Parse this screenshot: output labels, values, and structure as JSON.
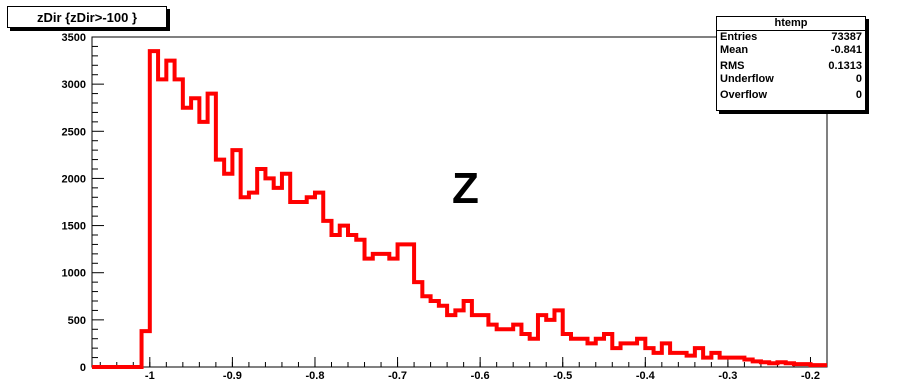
{
  "title": "zDir {zDir>-100 }",
  "annotation": "Z",
  "stats": {
    "name": "htemp",
    "rows": [
      {
        "label": "Entries",
        "value": "73387"
      },
      {
        "label": "Mean",
        "value": "-0.841"
      },
      {
        "label": "RMS",
        "value": "0.1313"
      },
      {
        "label": "Underflow",
        "value": "0"
      },
      {
        "label": "Overflow",
        "value": "0"
      }
    ]
  },
  "colors": {
    "histogram": "#ff0000",
    "frame": "#000000"
  },
  "chart_data": {
    "type": "histogram",
    "title": "zDir {zDir>-100 }",
    "xlabel": "",
    "ylabel": "",
    "xlim": [
      -1.07,
      -0.18
    ],
    "ylim": [
      0,
      3500
    ],
    "x_ticks": [
      -1,
      -0.9,
      -0.8,
      -0.7,
      -0.6,
      -0.5,
      -0.4,
      -0.3,
      -0.2
    ],
    "x_tick_labels": [
      "-1",
      "-0.9",
      "-0.8",
      "-0.7",
      "-0.6",
      "-0.5",
      "-0.4",
      "-0.3",
      "-0.2"
    ],
    "y_ticks": [
      0,
      500,
      1000,
      1500,
      2000,
      2500,
      3000,
      3500
    ],
    "y_tick_labels": [
      "0",
      "500",
      "1000",
      "1500",
      "2000",
      "2500",
      "3000",
      "3500"
    ],
    "bin_width": 0.01,
    "bin_start": -1.07,
    "values": [
      0,
      0,
      0,
      0,
      0,
      0,
      380,
      3350,
      3050,
      3250,
      3050,
      2750,
      2850,
      2600,
      2900,
      2200,
      2050,
      2300,
      1800,
      1850,
      2100,
      2000,
      1900,
      2050,
      1750,
      1750,
      1800,
      1850,
      1550,
      1400,
      1500,
      1400,
      1350,
      1150,
      1200,
      1200,
      1150,
      1300,
      1300,
      900,
      750,
      700,
      650,
      550,
      600,
      700,
      550,
      550,
      450,
      400,
      400,
      450,
      350,
      300,
      550,
      500,
      600,
      350,
      300,
      300,
      250,
      300,
      350,
      200,
      250,
      250,
      300,
      200,
      150,
      250,
      150,
      150,
      120,
      200,
      100,
      150,
      100,
      100,
      100,
      80,
      60,
      50,
      40,
      50,
      40,
      30,
      30,
      20,
      20
    ]
  }
}
